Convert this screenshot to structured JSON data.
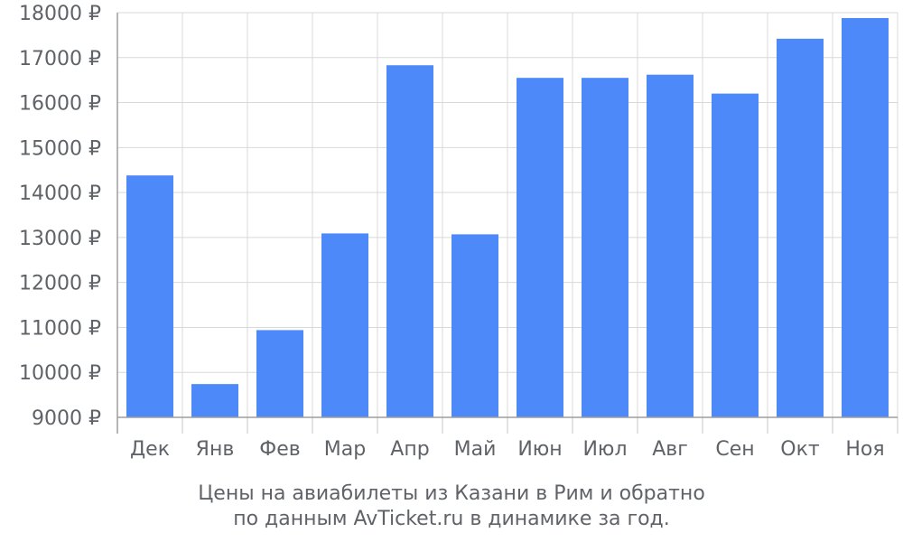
{
  "chart_data": {
    "type": "bar",
    "categories": [
      "Дек",
      "Янв",
      "Фев",
      "Мар",
      "Апр",
      "Май",
      "Июн",
      "Июл",
      "Авг",
      "Сен",
      "Окт",
      "Ноя"
    ],
    "values": [
      14380,
      9740,
      10940,
      13090,
      16830,
      13070,
      16550,
      16550,
      16620,
      16200,
      17420,
      17880
    ],
    "ylim": [
      9000,
      18000
    ],
    "yticks": [
      9000,
      10000,
      11000,
      12000,
      13000,
      14000,
      15000,
      16000,
      17000,
      18000
    ],
    "tick_suffix": " ₽",
    "grid": true,
    "bar_color": "#4d89f9",
    "grid_color": "#d9d9d9",
    "title": "",
    "xlabel": "",
    "ylabel": ""
  },
  "caption": {
    "line1": "Цены на авиабилеты из Казани в Рим и обратно",
    "line2": "по данным AvTicket.ru в динамике за год."
  }
}
